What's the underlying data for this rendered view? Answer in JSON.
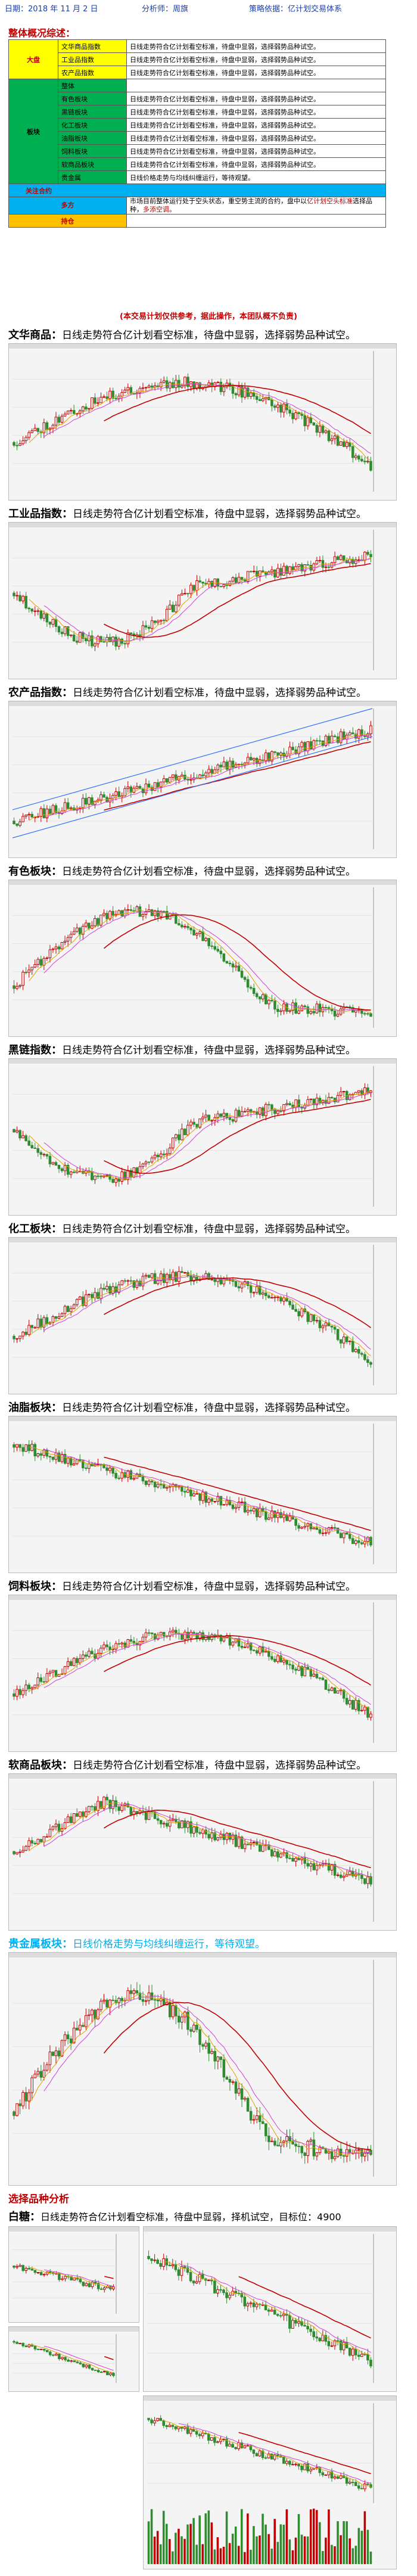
{
  "header": {
    "date": "日期：2018 年 11 月 2 日",
    "analyst": "分析师：周旗",
    "basis": "策略依据：亿计划交易体系"
  },
  "overview": {
    "title": "整体概况综述：",
    "dapan": "大盘",
    "bankuai": "板块",
    "guanzhu": "关注合约",
    "duofang": "多方",
    "chicang": "持仓",
    "rows_dapan": [
      {
        "name": "文华商品指数",
        "note": "日线走势符合亿计划看空标准，待盘中显弱，选择弱势品种试空。"
      },
      {
        "name": "工业品指数",
        "note": "日线走势符合亿计划看空标准，待盘中显弱，选择弱势品种试空。"
      },
      {
        "name": "农产品指数",
        "note": "日线走势符合亿计划看空标准，待盘中显弱，选择弱势品种试空。"
      }
    ],
    "rows_bankuai": [
      {
        "name": "整体",
        "note": ""
      },
      {
        "name": "有色板块",
        "note": "日线走势符合亿计划看空标准，待盘中显弱，选择弱势品种试空。"
      },
      {
        "name": "黑链板块",
        "note": "日线走势符合亿计划看空标准，待盘中显弱，选择弱势品种试空。"
      },
      {
        "name": "化工板块",
        "note": "日线走势符合亿计划看空标准，待盘中显弱，选择弱势品种试空。"
      },
      {
        "name": "油脂板块",
        "note": "日线走势符合亿计划看空标准，待盘中显弱，选择弱势品种试空。"
      },
      {
        "name": "饲料板块",
        "note": "日线走势符合亿计划看空标准，待盘中显弱，选择弱势品种试空。"
      },
      {
        "name": "软商品板块",
        "note": "日线走势符合亿计划看空标准，待盘中显弱，选择弱势品种试空。"
      },
      {
        "name": "贵金属",
        "note": "日线价格走势与均线纠缠运行，等待观望。"
      }
    ],
    "duofang_note_1": "市场目前整体运行处于空头状态，重空势主流的合约，盘中以",
    "duofang_note_red": "亿计划空头标准",
    "duofang_note_2": "选择品种，",
    "duofang_note_green": "多添空调。"
  },
  "disclaimer": "(本交易计划仅供参考，据此操作，本团队概不负责)",
  "panels": [
    {
      "name": "文华商品：",
      "desc": "日线走势符合亿计划看空标准，待盘中显弱，选择弱势品种试空。"
    },
    {
      "name": "工业品指数：",
      "desc": "日线走势符合亿计划看空标准，待盘中显弱，选择弱势品种试空。"
    },
    {
      "name": "农产品指数：",
      "desc": "日线走势符合亿计划看空标准，待盘中显弱，选择弱势品种试空。"
    },
    {
      "name": "有色板块：",
      "desc": "日线走势符合亿计划看空标准，待盘中显弱，选择弱势品种试空。"
    },
    {
      "name": "黑链指数：",
      "desc": "日线走势符合亿计划看空标准，待盘中显弱，选择弱势品种试空。"
    },
    {
      "name": "化工板块：",
      "desc": "日线走势符合亿计划看空标准，待盘中显弱，选择弱势品种试空。"
    },
    {
      "name": "油脂板块：",
      "desc": "日线走势符合亿计划看空标准，待盘中显弱，选择弱势品种试空。"
    },
    {
      "name": "饲料板块：",
      "desc": "日线走势符合亿计划看空标准，待盘中显弱，选择弱势品种试空。"
    },
    {
      "name": "软商品板块：",
      "desc": "日线走势符合亿计划看空标准，待盘中显弱，选择弱势品种试空。"
    },
    {
      "name": "贵金属板块：",
      "desc": "日线价格走势与均线纠缠运行，等待观望。"
    }
  ],
  "selection": {
    "title": "选择品种分析",
    "pick_name": "白糖：",
    "pick_desc": "日线走势符合亿计划看空标准，待盘中显弱，择机试空，目标位：",
    "pick_target": "4900"
  },
  "colors": {
    "up": "#c00000",
    "down": "#2e8b2e",
    "ma1": "#e0a000",
    "ma2": "#d040d0",
    "ma3": "#c00000",
    "channel": "#3070ff"
  }
}
